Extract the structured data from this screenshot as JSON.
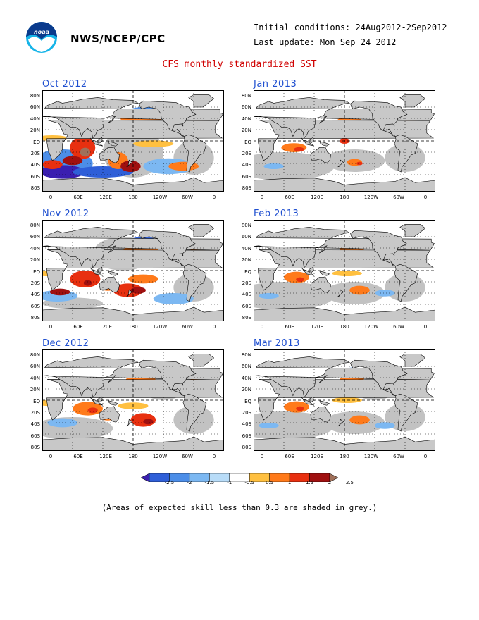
{
  "header": {
    "agency": "NWS/NCEP/CPC",
    "initial_conditions": "Initial conditions: 24Aug2012-2Sep2012",
    "last_update": "Last update: Mon Sep 24 2012",
    "title": "CFS monthly standardized SST"
  },
  "panels": [
    {
      "id": "oct-2012",
      "label": "Oct 2012"
    },
    {
      "id": "nov-2012",
      "label": "Nov 2012"
    },
    {
      "id": "dec-2012",
      "label": "Dec 2012"
    },
    {
      "id": "jan-2013",
      "label": "Jan 2013"
    },
    {
      "id": "feb-2013",
      "label": "Feb 2013"
    },
    {
      "id": "mar-2013",
      "label": "Mar 2013"
    }
  ],
  "lat_labels": [
    "80N",
    "60N",
    "40N",
    "20N",
    "EQ",
    "20S",
    "40S",
    "60S",
    "80S"
  ],
  "lon_labels": [
    "0",
    "60E",
    "120E",
    "180",
    "120W",
    "60W",
    "0"
  ],
  "colorbar": {
    "labels": [
      "-2.5",
      "-2",
      "-1.5",
      "-1",
      "-0.5",
      "0.5",
      "1",
      "1.5",
      "2",
      "2.5"
    ],
    "colors": [
      "#3a1fb0",
      "#2f5fd8",
      "#4c8ee8",
      "#7cb8f2",
      "#b8dcf8",
      "#ffffff",
      "#ffc040",
      "#ff7a1a",
      "#e83010",
      "#a01010",
      "#a0705a"
    ]
  },
  "footnote": "(Areas of expected skill less than 0.3 are shaded in grey.)"
}
